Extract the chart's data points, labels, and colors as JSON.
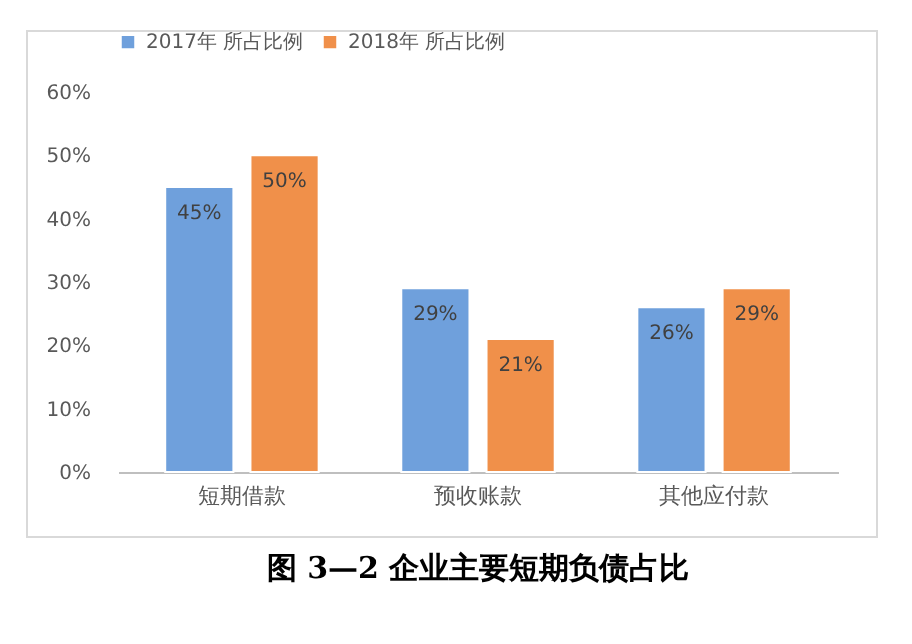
{
  "chart_data": {
    "type": "bar",
    "title": "图 3—2 企业主要短期负债占比",
    "categories": [
      "短期借款",
      "预收账款",
      "其他应付款"
    ],
    "series": [
      {
        "name": "2017年 所占比例",
        "color": "#6fa0dc",
        "values": [
          45,
          29,
          26
        ],
        "value_labels": [
          "45%",
          "29%",
          "26%"
        ]
      },
      {
        "name": "2018年 所占比例",
        "color": "#f0904a",
        "values": [
          50,
          21,
          29
        ],
        "value_labels": [
          "50%",
          "21%",
          "29%"
        ]
      }
    ],
    "ylim": [
      0,
      60
    ],
    "yticks": [
      {
        "value": 0,
        "label": "0%"
      },
      {
        "value": 10,
        "label": "10%"
      },
      {
        "value": 20,
        "label": "20%"
      },
      {
        "value": 30,
        "label": "30%"
      },
      {
        "value": 40,
        "label": "40%"
      },
      {
        "value": 50,
        "label": "50%"
      },
      {
        "value": 60,
        "label": "60%"
      }
    ],
    "grid": false,
    "legend": "top"
  }
}
